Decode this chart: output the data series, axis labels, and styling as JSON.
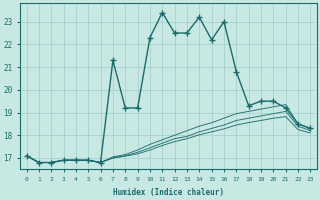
{
  "title": "",
  "xlabel": "Humidex (Indice chaleur)",
  "xlim": [
    -0.5,
    23.5
  ],
  "ylim": [
    16.5,
    23.8
  ],
  "yticks": [
    17,
    18,
    19,
    20,
    21,
    22,
    23
  ],
  "xticks": [
    0,
    1,
    2,
    3,
    4,
    5,
    6,
    7,
    8,
    9,
    10,
    11,
    12,
    13,
    14,
    15,
    16,
    17,
    18,
    19,
    20,
    21,
    22,
    23
  ],
  "bg_color": "#c8e8e4",
  "grid_color": "#a0cccc",
  "line_color": "#1a6b6b",
  "main_x": [
    0,
    1,
    2,
    3,
    4,
    5,
    6,
    7,
    8,
    9,
    10,
    11,
    12,
    13,
    14,
    15,
    16,
    17,
    18,
    19,
    20,
    21,
    22,
    23
  ],
  "main_y": [
    17.1,
    16.8,
    16.8,
    16.9,
    16.9,
    16.9,
    16.8,
    21.3,
    19.2,
    19.2,
    22.3,
    23.4,
    22.5,
    22.5,
    23.2,
    22.2,
    23.0,
    20.8,
    19.3,
    19.5,
    19.5,
    19.2,
    18.5,
    18.3
  ],
  "line2_x": [
    0,
    1,
    2,
    3,
    4,
    5,
    6,
    7,
    8,
    9,
    10,
    11,
    12,
    13,
    14,
    15,
    16,
    17,
    18,
    19,
    20,
    21,
    22,
    23
  ],
  "line2_y": [
    17.1,
    16.8,
    16.8,
    16.9,
    16.9,
    16.9,
    16.8,
    17.05,
    17.15,
    17.35,
    17.6,
    17.8,
    18.0,
    18.2,
    18.4,
    18.55,
    18.75,
    18.95,
    19.05,
    19.15,
    19.25,
    19.35,
    18.5,
    18.3
  ],
  "line3_x": [
    0,
    1,
    2,
    3,
    4,
    5,
    6,
    7,
    8,
    9,
    10,
    11,
    12,
    13,
    14,
    15,
    16,
    17,
    18,
    19,
    20,
    21,
    22,
    23
  ],
  "line3_y": [
    17.1,
    16.8,
    16.8,
    16.9,
    16.9,
    16.9,
    16.8,
    17.0,
    17.1,
    17.25,
    17.45,
    17.65,
    17.85,
    17.95,
    18.15,
    18.3,
    18.45,
    18.65,
    18.75,
    18.85,
    18.95,
    19.05,
    18.4,
    18.2
  ],
  "line4_x": [
    0,
    1,
    2,
    3,
    4,
    5,
    6,
    7,
    8,
    9,
    10,
    11,
    12,
    13,
    14,
    15,
    16,
    17,
    18,
    19,
    20,
    21,
    22,
    23
  ],
  "line4_y": [
    17.1,
    16.8,
    16.8,
    16.9,
    16.9,
    16.9,
    16.8,
    17.0,
    17.08,
    17.18,
    17.35,
    17.55,
    17.72,
    17.85,
    18.02,
    18.15,
    18.28,
    18.45,
    18.56,
    18.65,
    18.75,
    18.82,
    18.25,
    18.1
  ]
}
